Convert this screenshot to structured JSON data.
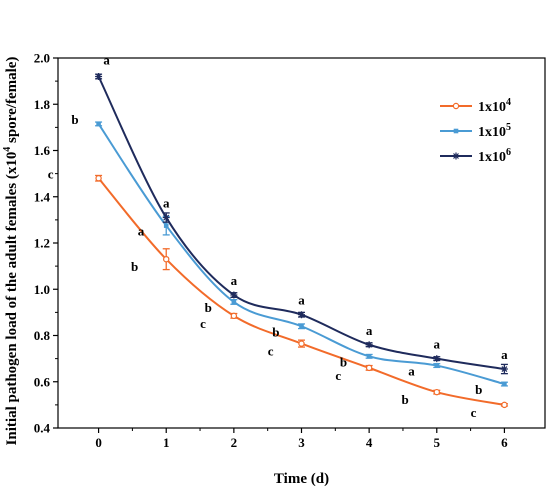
{
  "chart_data": {
    "type": "line",
    "xlabel": "Time (d)",
    "ylabel": "Initial pathogen load of the adult females (x10",
    "ylabel_sup": "4",
    "ylabel_suffix": " spore/female)",
    "x": [
      0,
      1,
      2,
      3,
      4,
      5,
      6
    ],
    "xlim": [
      -0.6,
      6.6
    ],
    "ylim": [
      0.4,
      2.0
    ],
    "x_ticks": [
      0,
      1,
      2,
      3,
      4,
      5,
      6
    ],
    "y_ticks": [
      0.4,
      0.6,
      0.8,
      1.0,
      1.2,
      1.4,
      1.6,
      1.8,
      2.0
    ],
    "y_tick_labels": [
      "0.4",
      "0.6",
      "0.8",
      "1.0",
      "1.2",
      "1.4",
      "1.6",
      "1.8",
      "2.0"
    ],
    "grid": false,
    "legend_position": "top-right",
    "series": [
      {
        "name": "1x10",
        "sup": "4",
        "color": "#F26B2A",
        "marker": "circle",
        "values": [
          1.48,
          1.13,
          0.885,
          0.765,
          0.66,
          0.555,
          0.5
        ],
        "errors": [
          0.012,
          0.045,
          0.01,
          0.015,
          0.01,
          0.008,
          0.005
        ],
        "labels": [
          "c",
          "b",
          "c",
          "c",
          "c",
          "b",
          "c"
        ]
      },
      {
        "name": "1x10",
        "sup": "5",
        "color": "#4A9BD4",
        "marker": "square",
        "values": [
          1.715,
          1.275,
          0.945,
          0.84,
          0.71,
          0.67,
          0.59
        ],
        "errors": [
          0.008,
          0.04,
          0.01,
          0.01,
          0.008,
          0.008,
          0.008
        ],
        "labels": [
          "b",
          "a",
          "b",
          "b",
          "b",
          "a",
          "b"
        ]
      },
      {
        "name": "1x10",
        "sup": "6",
        "color": "#1F2B5C",
        "marker": "star",
        "values": [
          1.92,
          1.31,
          0.975,
          0.89,
          0.76,
          0.7,
          0.655
        ],
        "errors": [
          0.01,
          0.02,
          0.01,
          0.01,
          0.008,
          0.008,
          0.02
        ],
        "labels": [
          "a",
          "a",
          "a",
          "a",
          "a",
          "a",
          "a"
        ]
      }
    ]
  }
}
